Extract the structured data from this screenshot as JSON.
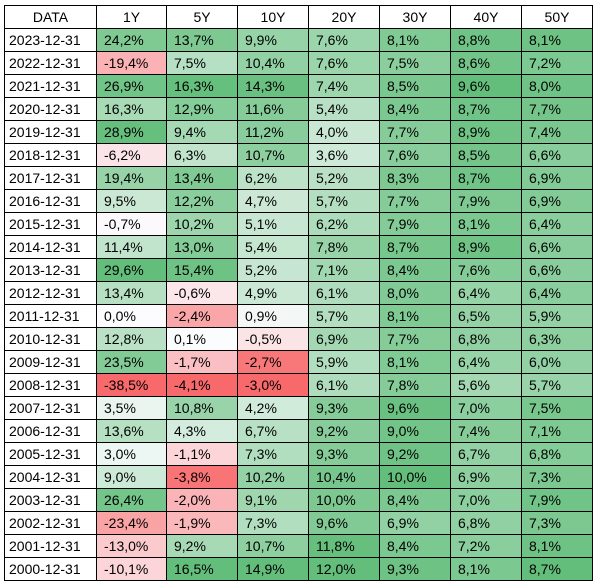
{
  "table": {
    "headers": [
      "DATA",
      "1Y",
      "5Y",
      "10Y",
      "20Y",
      "30Y",
      "40Y",
      "50Y"
    ],
    "rows": [
      [
        "2023-12-31",
        "24,2%",
        "13,7%",
        "9,9%",
        "7,6%",
        "8,1%",
        "8,8%",
        "8,1%"
      ],
      [
        "2022-12-31",
        "-19,4%",
        "7,5%",
        "10,4%",
        "7,6%",
        "7,5%",
        "8,6%",
        "7,2%"
      ],
      [
        "2021-12-31",
        "26,9%",
        "16,3%",
        "14,3%",
        "7,4%",
        "8,5%",
        "9,6%",
        "8,0%"
      ],
      [
        "2020-12-31",
        "16,3%",
        "12,9%",
        "11,6%",
        "5,4%",
        "8,4%",
        "8,7%",
        "7,7%"
      ],
      [
        "2019-12-31",
        "28,9%",
        "9,4%",
        "11,2%",
        "4,0%",
        "7,7%",
        "8,9%",
        "7,4%"
      ],
      [
        "2018-12-31",
        "-6,2%",
        "6,3%",
        "10,7%",
        "3,6%",
        "7,6%",
        "8,5%",
        "6,6%"
      ],
      [
        "2017-12-31",
        "19,4%",
        "13,4%",
        "6,2%",
        "5,2%",
        "8,3%",
        "8,7%",
        "6,9%"
      ],
      [
        "2016-12-31",
        "9,5%",
        "12,2%",
        "4,7%",
        "5,7%",
        "7,7%",
        "7,9%",
        "6,9%"
      ],
      [
        "2015-12-31",
        "-0,7%",
        "10,2%",
        "5,1%",
        "6,2%",
        "7,9%",
        "8,1%",
        "6,4%"
      ],
      [
        "2014-12-31",
        "11,4%",
        "13,0%",
        "5,4%",
        "7,8%",
        "8,7%",
        "8,9%",
        "6,6%"
      ],
      [
        "2013-12-31",
        "29,6%",
        "15,4%",
        "5,2%",
        "7,1%",
        "8,4%",
        "7,6%",
        "6,6%"
      ],
      [
        "2012-12-31",
        "13,4%",
        "-0,6%",
        "4,9%",
        "6,1%",
        "8,0%",
        "6,4%",
        "6,4%"
      ],
      [
        "2011-12-31",
        "0,0%",
        "-2,4%",
        "0,9%",
        "5,7%",
        "8,1%",
        "6,5%",
        "5,9%"
      ],
      [
        "2010-12-31",
        "12,8%",
        "0,1%",
        "-0,5%",
        "6,9%",
        "7,7%",
        "6,8%",
        "6,3%"
      ],
      [
        "2009-12-31",
        "23,5%",
        "-1,7%",
        "-2,7%",
        "5,9%",
        "8,1%",
        "6,4%",
        "6,0%"
      ],
      [
        "2008-12-31",
        "-38,5%",
        "-4,1%",
        "-3,0%",
        "6,1%",
        "7,8%",
        "5,6%",
        "5,7%"
      ],
      [
        "2007-12-31",
        "3,5%",
        "10,8%",
        "4,2%",
        "9,3%",
        "9,6%",
        "7,0%",
        "7,5%"
      ],
      [
        "2006-12-31",
        "13,6%",
        "4,3%",
        "6,7%",
        "9,2%",
        "9,0%",
        "7,4%",
        "7,1%"
      ],
      [
        "2005-12-31",
        "3,0%",
        "-1,1%",
        "7,3%",
        "9,3%",
        "9,2%",
        "6,7%",
        "6,8%"
      ],
      [
        "2004-12-31",
        "9,0%",
        "-3,8%",
        "10,2%",
        "10,4%",
        "10,0%",
        "6,9%",
        "7,3%"
      ],
      [
        "2003-12-31",
        "26,4%",
        "-2,0%",
        "9,1%",
        "10,0%",
        "8,4%",
        "7,0%",
        "7,9%"
      ],
      [
        "2002-12-31",
        "-23,4%",
        "-1,9%",
        "7,3%",
        "9,6%",
        "6,9%",
        "6,8%",
        "7,3%"
      ],
      [
        "2001-12-31",
        "-13,0%",
        "9,2%",
        "10,7%",
        "11,8%",
        "8,4%",
        "7,2%",
        "8,1%"
      ],
      [
        "2000-12-31",
        "-10,1%",
        "16,5%",
        "14,9%",
        "12,0%",
        "9,3%",
        "8,1%",
        "8,7%"
      ]
    ]
  },
  "colors": {
    "positive_max": "#63be7b",
    "negative_max": "#f8696b",
    "neutral": "#fcfcff"
  }
}
